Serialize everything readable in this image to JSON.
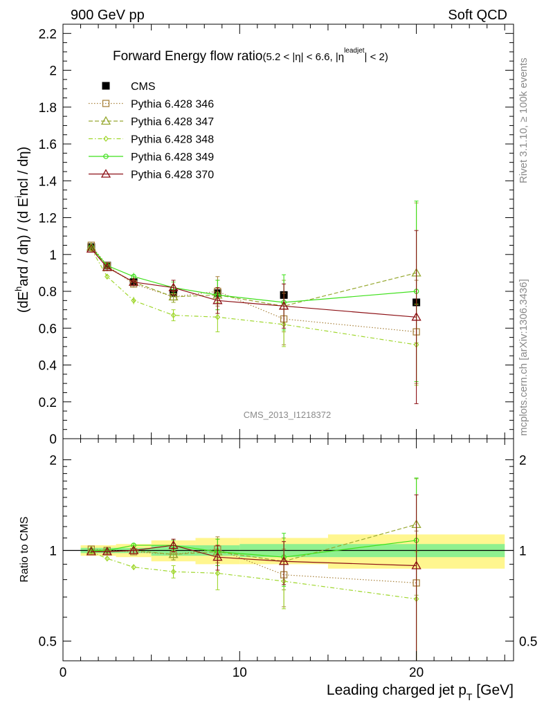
{
  "header": {
    "left": "900 GeV pp",
    "right": "Soft QCD"
  },
  "side_labels": {
    "rivet": "Rivet 3.1.10, ≥ 100k events",
    "mcplots": "mcplots.cern.ch [arXiv:1306.3436]"
  },
  "chart_data": [
    {
      "type": "scatter",
      "title_main": "Forward Energy flow ratio",
      "title_cut": "(5.2 < |η| < 6.6, |η",
      "title_cut_sup": "leadjet",
      "title_cut_end": "| < 2)",
      "ylabel": "(dE^hard / dη) / (d E^incl / dη)",
      "xlabel": "Leading charged jet p_T [GeV]",
      "reference": "CMS_2013_I1218372",
      "xlim": [
        0,
        25.5
      ],
      "ylim": [
        0,
        2.25
      ],
      "yticks": [
        "0",
        "0.2",
        "0.4",
        "0.6",
        "0.8",
        "1",
        "1.2",
        "1.4",
        "1.6",
        "1.8",
        "2",
        "2.2"
      ],
      "xticks": [
        "0",
        "10",
        "20"
      ],
      "grid": false,
      "legend_position": "top-left",
      "x": [
        1.6,
        2.5,
        4.0,
        6.25,
        8.75,
        12.5,
        20.0
      ],
      "x_bin_edges": [
        1.0,
        2.0,
        3.0,
        5.0,
        7.5,
        10.0,
        15.0,
        25.0
      ],
      "series": [
        {
          "name": "CMS",
          "color": "#000000",
          "marker": "square-filled",
          "line": "none",
          "values": [
            1.04,
            0.94,
            0.85,
            0.79,
            0.79,
            0.78,
            0.74
          ],
          "errors": [
            0.01,
            0.01,
            0.01,
            0.01,
            0.02,
            0.02,
            0.02
          ]
        },
        {
          "name": "Pythia 6.428 346",
          "color": "#a8823c",
          "marker": "square-open",
          "line": "dotted",
          "values": [
            1.05,
            0.94,
            0.84,
            0.77,
            0.8,
            0.65,
            0.58
          ],
          "errors": [
            0.01,
            0.01,
            0.02,
            0.03,
            0.08,
            0.14,
            0.28
          ]
        },
        {
          "name": "Pythia 6.428 347",
          "color": "#96a830",
          "marker": "triangle-open",
          "line": "dashed",
          "values": [
            1.04,
            0.93,
            0.85,
            0.77,
            0.78,
            0.72,
            0.9
          ],
          "errors": [
            0.01,
            0.01,
            0.02,
            0.03,
            0.08,
            0.14,
            0.38
          ]
        },
        {
          "name": "Pythia 6.428 348",
          "color": "#9ed62a",
          "marker": "diamond-open",
          "line": "dashdot",
          "values": [
            1.03,
            0.88,
            0.75,
            0.67,
            0.66,
            0.62,
            0.51
          ],
          "errors": [
            0.01,
            0.01,
            0.02,
            0.03,
            0.08,
            0.12,
            0.22
          ]
        },
        {
          "name": "Pythia 6.428 349",
          "color": "#3ee01a",
          "marker": "circle-open",
          "line": "solid",
          "values": [
            1.04,
            0.94,
            0.88,
            0.82,
            0.78,
            0.74,
            0.8
          ],
          "errors": [
            0.01,
            0.01,
            0.02,
            0.03,
            0.08,
            0.15,
            0.49
          ]
        },
        {
          "name": "Pythia 6.428 370",
          "color": "#8c0f14",
          "marker": "triangle-open",
          "line": "solid",
          "values": [
            1.03,
            0.93,
            0.85,
            0.82,
            0.75,
            0.72,
            0.66
          ],
          "errors": [
            0.01,
            0.02,
            0.02,
            0.04,
            0.07,
            0.12,
            0.47
          ]
        }
      ]
    },
    {
      "type": "scatter",
      "ylabel": "Ratio to CMS",
      "xlabel": "Leading charged jet p_T [GeV]",
      "xlim": [
        0,
        25.5
      ],
      "ylim": [
        0.43,
        2.35
      ],
      "log_y": true,
      "yticks": [
        "0.5",
        "1",
        "2"
      ],
      "xticks": [
        "0",
        "10",
        "20"
      ],
      "band_inner": [
        0.02,
        0.02,
        0.02,
        0.04,
        0.04,
        0.05,
        0.05
      ],
      "band_outer": [
        0.04,
        0.04,
        0.05,
        0.08,
        0.1,
        0.1,
        0.13
      ],
      "x": [
        1.6,
        2.5,
        4.0,
        6.25,
        8.75,
        12.5,
        20.0
      ],
      "series": [
        {
          "name": "Pythia 6.428 346",
          "color": "#a8823c",
          "marker": "square-open",
          "line": "dotted",
          "values": [
            1.01,
            1.0,
            0.99,
            0.97,
            1.01,
            0.83,
            0.78
          ],
          "errors": [
            0.01,
            0.01,
            0.02,
            0.04,
            0.1,
            0.18,
            0.38
          ]
        },
        {
          "name": "Pythia 6.428 347",
          "color": "#96a830",
          "marker": "triangle-open",
          "line": "dashed",
          "values": [
            1.0,
            0.99,
            1.0,
            0.97,
            0.99,
            0.92,
            1.22
          ],
          "errors": [
            0.01,
            0.01,
            0.02,
            0.04,
            0.1,
            0.18,
            0.51
          ]
        },
        {
          "name": "Pythia 6.428 348",
          "color": "#9ed62a",
          "marker": "diamond-open",
          "line": "dashdot",
          "values": [
            0.99,
            0.94,
            0.88,
            0.85,
            0.84,
            0.79,
            0.69
          ],
          "errors": [
            0.01,
            0.01,
            0.02,
            0.04,
            0.1,
            0.15,
            0.3
          ]
        },
        {
          "name": "Pythia 6.428 349",
          "color": "#3ee01a",
          "marker": "circle-open",
          "line": "solid",
          "values": [
            1.0,
            1.0,
            1.04,
            1.04,
            0.99,
            0.95,
            1.08
          ],
          "errors": [
            0.01,
            0.01,
            0.02,
            0.04,
            0.1,
            0.19,
            0.66
          ]
        },
        {
          "name": "Pythia 6.428 370",
          "color": "#8c0f14",
          "marker": "triangle-open",
          "line": "solid",
          "values": [
            0.99,
            0.99,
            1.0,
            1.04,
            0.95,
            0.92,
            0.89
          ],
          "errors": [
            0.01,
            0.02,
            0.02,
            0.05,
            0.09,
            0.15,
            0.64
          ]
        }
      ]
    }
  ]
}
